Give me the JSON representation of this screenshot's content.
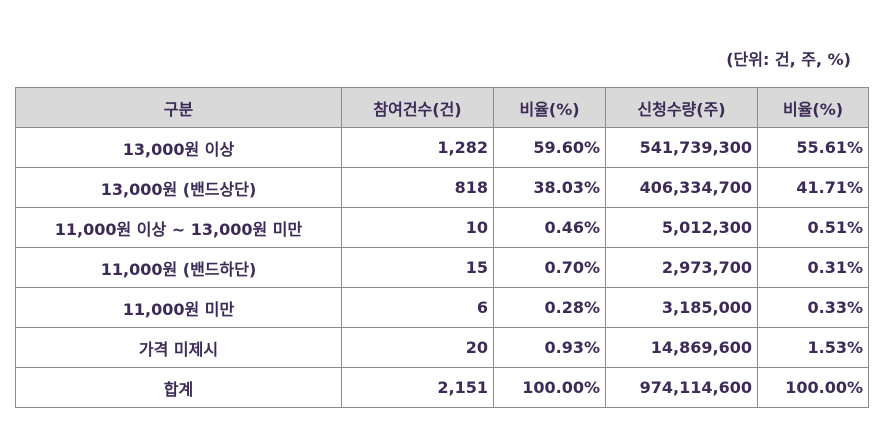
{
  "unit_note": "(단위: 건, 주, %)",
  "table": {
    "headers": [
      "구분",
      "참여건수(건)",
      "비율(%)",
      "신청수량(주)",
      "비율(%)"
    ],
    "rows": [
      {
        "label": "13,000원 이상",
        "count": "1,282",
        "count_ratio": "59.60%",
        "quantity": "541,739,300",
        "quantity_ratio": "55.61%"
      },
      {
        "label": "13,000원 (밴드상단)",
        "count": "818",
        "count_ratio": "38.03%",
        "quantity": "406,334,700",
        "quantity_ratio": "41.71%"
      },
      {
        "label": "11,000원 이상 ~ 13,000원 미만",
        "count": "10",
        "count_ratio": "0.46%",
        "quantity": "5,012,300",
        "quantity_ratio": "0.51%"
      },
      {
        "label": "11,000원 (밴드하단)",
        "count": "15",
        "count_ratio": "0.70%",
        "quantity": "2,973,700",
        "quantity_ratio": "0.31%"
      },
      {
        "label": "11,000원 미만",
        "count": "6",
        "count_ratio": "0.28%",
        "quantity": "3,185,000",
        "quantity_ratio": "0.33%"
      },
      {
        "label": "가격 미제시",
        "count": "20",
        "count_ratio": "0.93%",
        "quantity": "14,869,600",
        "quantity_ratio": "1.53%"
      },
      {
        "label": "합계",
        "count": "2,151",
        "count_ratio": "100.00%",
        "quantity": "974,114,600",
        "quantity_ratio": "100.00%"
      }
    ]
  }
}
